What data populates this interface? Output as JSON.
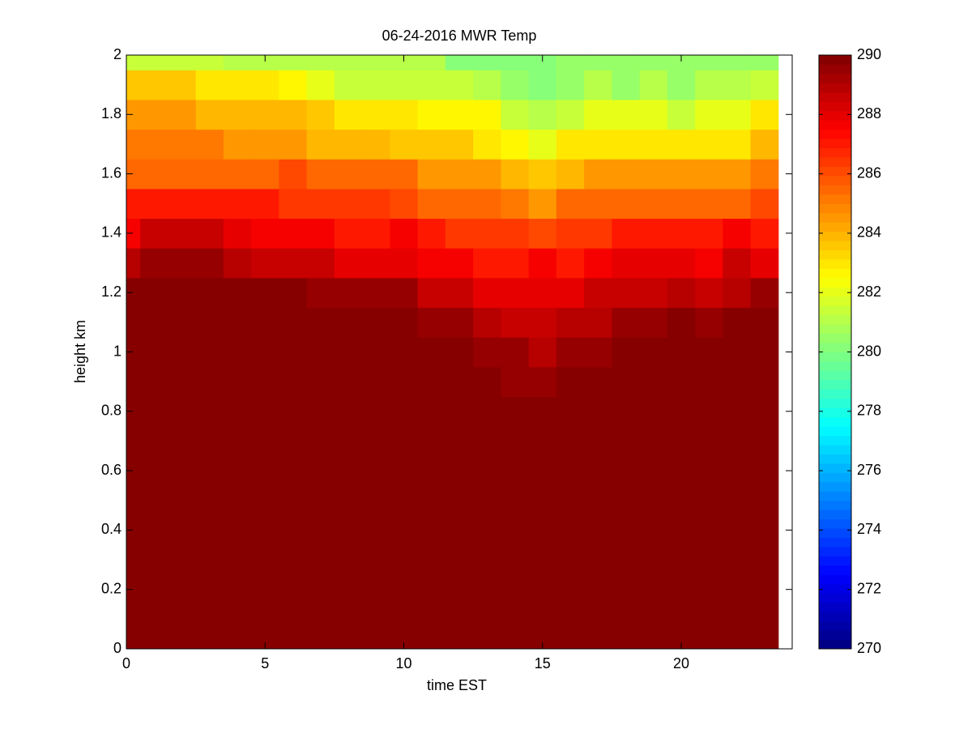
{
  "chart_data": {
    "type": "heatmap",
    "title": "06-24-2016 MWR Temp",
    "x_label": "time EST",
    "y_label": "height km",
    "x": [
      0,
      1,
      2,
      3,
      4,
      5,
      6,
      7,
      8,
      9,
      10,
      11,
      12,
      13,
      14,
      15,
      16,
      17,
      18,
      19,
      20,
      21,
      22,
      23
    ],
    "y": [
      0,
      0.1,
      0.2,
      0.3,
      0.4,
      0.5,
      0.6,
      0.7,
      0.8,
      0.9,
      1,
      1.1,
      1.2,
      1.3,
      1.4,
      1.5,
      1.6,
      1.7,
      1.8,
      1.9,
      2
    ],
    "z": [
      [
        290,
        290,
        290,
        290,
        290,
        290,
        290,
        290,
        290,
        290,
        290,
        290,
        290,
        290,
        290,
        290,
        290,
        290,
        290,
        290,
        290,
        290,
        290,
        290
      ],
      [
        290,
        290,
        290,
        290,
        290,
        290,
        290,
        290,
        290,
        290,
        290,
        290,
        290,
        290,
        290,
        290,
        290,
        290,
        290,
        290,
        290,
        290,
        290,
        290
      ],
      [
        290,
        290,
        290,
        290,
        290,
        290,
        290,
        290,
        290,
        290,
        290,
        290,
        290,
        290,
        290,
        290,
        290,
        290,
        290,
        290,
        290,
        290,
        290,
        290
      ],
      [
        290,
        290,
        290,
        290,
        290,
        290,
        290,
        290,
        290,
        290,
        290,
        290,
        290,
        290,
        290,
        290,
        290,
        290,
        290,
        290,
        290,
        290,
        290,
        290
      ],
      [
        290,
        290,
        290,
        290,
        290,
        290,
        290,
        290,
        290,
        290,
        290,
        290,
        290,
        290,
        290,
        290,
        290,
        290,
        290,
        290,
        290,
        290,
        290,
        290
      ],
      [
        290,
        290,
        290,
        290,
        290,
        290,
        290,
        290,
        290,
        290,
        290,
        290,
        290,
        290,
        290,
        290,
        290,
        290,
        290,
        290,
        290,
        290,
        290,
        290
      ],
      [
        290,
        290,
        290,
        290,
        290,
        290,
        290,
        290,
        290,
        290,
        290,
        290,
        290,
        290,
        290,
        290,
        290,
        290,
        290,
        290,
        290,
        290,
        290,
        290
      ],
      [
        290,
        290,
        290,
        290,
        290,
        290,
        290,
        290,
        290,
        290,
        290,
        290,
        290,
        290,
        290,
        290,
        290,
        290,
        290,
        290,
        290,
        290,
        290,
        290
      ],
      [
        290,
        290,
        290,
        290,
        290,
        290,
        290,
        290,
        290,
        290,
        290,
        290,
        290,
        290,
        290,
        290,
        290,
        290,
        290,
        290,
        290,
        290,
        290,
        290
      ],
      [
        290,
        290,
        290,
        290,
        290,
        290,
        290,
        290,
        290,
        290,
        290,
        290,
        290,
        290,
        289.5,
        289.5,
        290,
        290,
        290,
        290,
        290,
        290,
        290,
        290
      ],
      [
        290,
        290,
        290,
        290,
        290,
        290,
        290,
        290,
        290,
        290,
        290,
        290,
        290,
        289.5,
        289.5,
        289,
        289.5,
        289.5,
        290,
        290,
        290,
        290,
        290,
        290
      ],
      [
        290,
        290,
        290,
        290,
        290,
        290,
        290,
        290,
        290,
        290,
        290,
        289.5,
        289.5,
        289,
        288.5,
        288.5,
        289,
        289,
        289.5,
        289.5,
        290,
        289.5,
        290,
        290
      ],
      [
        290,
        290,
        290,
        290,
        290,
        290,
        290,
        289.5,
        289.5,
        289.5,
        289.5,
        288.5,
        288.5,
        288,
        288,
        288,
        288,
        288.5,
        288.5,
        288.5,
        289,
        288.5,
        289,
        289.5
      ],
      [
        289,
        289.5,
        289.5,
        289.5,
        289,
        288.5,
        288.5,
        288.5,
        288,
        288,
        288,
        287.5,
        287.5,
        287,
        287,
        287.5,
        287,
        287.5,
        288,
        288,
        288,
        287.5,
        288.5,
        288
      ],
      [
        287.5,
        288.5,
        288.5,
        288.5,
        288,
        287.5,
        287.5,
        287.5,
        287,
        287,
        287.5,
        287,
        286.5,
        286.5,
        286.5,
        286,
        286.5,
        286.5,
        287,
        287,
        287,
        287,
        287.5,
        287
      ],
      [
        287,
        287,
        287,
        287,
        287,
        287,
        286.5,
        286.5,
        286.5,
        286.5,
        286,
        285.5,
        285.5,
        285.5,
        285,
        284.5,
        285.5,
        285.5,
        285.5,
        285.5,
        285.5,
        285.5,
        285.5,
        286
      ],
      [
        285.5,
        285.5,
        285.5,
        285.5,
        285.5,
        285.5,
        286,
        285.5,
        285.5,
        285.5,
        285.5,
        284.5,
        284.5,
        284.5,
        284,
        283.5,
        284,
        284.5,
        284.5,
        284.5,
        284.5,
        284.5,
        284.5,
        285
      ],
      [
        285,
        285,
        285,
        285,
        284.5,
        284.5,
        284.5,
        284,
        284,
        284,
        283.5,
        283.5,
        283.5,
        283,
        282.5,
        282,
        283,
        283,
        283,
        283,
        283,
        283,
        283,
        284
      ],
      [
        284.5,
        284.5,
        284.5,
        284,
        284,
        284,
        284,
        283.5,
        283,
        283,
        283,
        282.5,
        282.5,
        282.5,
        281.5,
        281,
        281.5,
        282,
        282,
        282,
        281.5,
        282,
        282,
        283
      ],
      [
        283.5,
        283.5,
        283.5,
        283,
        283,
        283,
        282.5,
        282,
        281.5,
        281.5,
        281.5,
        281.5,
        281.5,
        281,
        280.5,
        280,
        280.5,
        281,
        280.5,
        281,
        280.5,
        281,
        281,
        281.5
      ],
      [
        281.5,
        281.5,
        281.5,
        281.5,
        281,
        281,
        281,
        281,
        281,
        281,
        281,
        281,
        280,
        280,
        280,
        280,
        280.5,
        280.5,
        280.5,
        280.5,
        280.5,
        280.5,
        280.5,
        280.5
      ]
    ],
    "xlim": [
      0,
      24
    ],
    "xticks": [
      0,
      5,
      10,
      15,
      20
    ],
    "ylim": [
      0,
      2
    ],
    "yticks": [
      0,
      0.2,
      0.4,
      0.6,
      0.8,
      1,
      1.2,
      1.4,
      1.6,
      1.8,
      2
    ],
    "colormap": "jet",
    "clim": [
      270,
      290
    ],
    "cticks": [
      270,
      272,
      274,
      276,
      278,
      280,
      282,
      284,
      286,
      288,
      290
    ]
  }
}
